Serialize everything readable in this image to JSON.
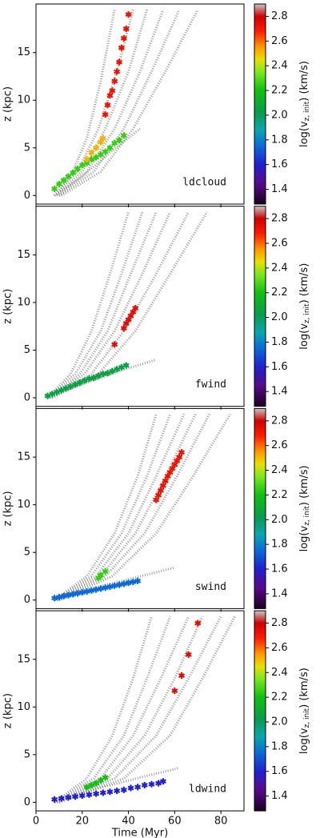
{
  "chart_data": [
    {
      "type": "scatter",
      "label": "ldcloud",
      "ylabel": "z (kpc)",
      "xlim": [
        0,
        90
      ],
      "ylim": [
        -0.9,
        20.1
      ],
      "xticks": [
        0,
        20,
        40,
        60,
        80
      ],
      "yticks": [
        0,
        5,
        10,
        15
      ],
      "clim": [
        1.28,
        2.9
      ],
      "cticks": [
        1.4,
        1.6,
        1.8,
        {
          "value": 2,
          "label": "2.0"
        },
        2.2,
        2.4,
        2.6,
        2.8
      ],
      "cbar_label": {
        "main": "log(v",
        "sub": "z, init",
        "tail": ") (km/s)"
      },
      "colormap": [
        {
          "value": 1.28,
          "color": "#1a0020"
        },
        {
          "value": 1.45,
          "color": "#5a0a8a"
        },
        {
          "value": 1.6,
          "color": "#2020d0"
        },
        {
          "value": 1.75,
          "color": "#0a6ad8"
        },
        {
          "value": 1.88,
          "color": "#0aa6b0"
        },
        {
          "value": 2.02,
          "color": "#0a9a50"
        },
        {
          "value": 2.2,
          "color": "#10c010"
        },
        {
          "value": 2.35,
          "color": "#7ce820"
        },
        {
          "value": 2.45,
          "color": "#e8e000"
        },
        {
          "value": 2.55,
          "color": "#ff9a00"
        },
        {
          "value": 2.68,
          "color": "#ff1a00"
        },
        {
          "value": 2.8,
          "color": "#d00000"
        },
        {
          "value": 2.9,
          "color": "#c8c8c8"
        }
      ],
      "tracks": [
        {
          "x": [
            8,
            15,
            22,
            28,
            34
          ],
          "y": [
            0,
            2,
            6,
            12,
            19.5
          ]
        },
        {
          "x": [
            8,
            18,
            27,
            35,
            42
          ],
          "y": [
            0,
            2.5,
            7,
            13,
            19.5
          ]
        },
        {
          "x": [
            9,
            20,
            30,
            40,
            48
          ],
          "y": [
            0,
            2.5,
            7,
            13,
            19.5
          ]
        },
        {
          "x": [
            10,
            22,
            34,
            45,
            55
          ],
          "y": [
            0,
            2.5,
            7,
            13,
            19.5
          ]
        },
        {
          "x": [
            10,
            25,
            38,
            50,
            62
          ],
          "y": [
            0,
            2.5,
            7,
            13,
            19.5
          ]
        },
        {
          "x": [
            11,
            28,
            42,
            56,
            70
          ],
          "y": [
            0,
            2.5,
            7,
            13,
            19.5
          ]
        },
        {
          "x": [
            8,
            20,
            32,
            45
          ],
          "y": [
            0,
            2,
            4.5,
            7
          ]
        }
      ],
      "stars": [
        {
          "c": 2.25,
          "x": [
            8,
            10,
            12,
            14,
            16,
            18,
            20,
            22,
            24,
            26,
            28,
            30,
            32,
            34,
            36,
            38
          ],
          "y": [
            0.7,
            1.2,
            1.6,
            2,
            2.4,
            2.8,
            3.2,
            3.4,
            3.8,
            4,
            4.3,
            4.6,
            5,
            5.5,
            5.8,
            6.3
          ]
        },
        {
          "c": 2.52,
          "x": [
            22,
            24,
            26,
            28,
            29
          ],
          "y": [
            3.8,
            4.5,
            5,
            5.6,
            6
          ]
        },
        {
          "c": 2.72,
          "x": [
            30,
            31,
            32,
            33,
            34,
            35,
            36,
            37,
            38,
            39,
            40
          ],
          "y": [
            8.5,
            9.5,
            10.5,
            11,
            12,
            13,
            14,
            15.5,
            16.5,
            17.5,
            19
          ]
        }
      ]
    },
    {
      "type": "scatter",
      "label": "fwind",
      "ylabel": "z (kpc)",
      "xlim": [
        0,
        90
      ],
      "ylim": [
        -0.9,
        20.1
      ],
      "xticks": [
        0,
        20,
        40,
        60,
        80
      ],
      "yticks": [
        0,
        5,
        10,
        15
      ],
      "clim": [
        1.28,
        2.9
      ],
      "cticks": [
        1.4,
        1.6,
        1.8,
        {
          "value": 2,
          "label": "2.0"
        },
        2.2,
        2.4,
        2.6,
        2.8
      ],
      "cbar_label": {
        "main": "log(v",
        "sub": "z, init",
        "tail": ") (km/s)"
      },
      "colormap": [
        {
          "value": 1.28,
          "color": "#1a0020"
        },
        {
          "value": 1.45,
          "color": "#5a0a8a"
        },
        {
          "value": 1.6,
          "color": "#2020d0"
        },
        {
          "value": 1.75,
          "color": "#0a6ad8"
        },
        {
          "value": 1.88,
          "color": "#0aa6b0"
        },
        {
          "value": 2.02,
          "color": "#0a9a50"
        },
        {
          "value": 2.2,
          "color": "#10c010"
        },
        {
          "value": 2.35,
          "color": "#7ce820"
        },
        {
          "value": 2.45,
          "color": "#e8e000"
        },
        {
          "value": 2.55,
          "color": "#ff9a00"
        },
        {
          "value": 2.68,
          "color": "#ff1a00"
        },
        {
          "value": 2.8,
          "color": "#d00000"
        },
        {
          "value": 2.9,
          "color": "#c8c8c8"
        }
      ],
      "tracks": [
        {
          "x": [
            5,
            15,
            24,
            32,
            40
          ],
          "y": [
            0,
            2.5,
            7,
            13,
            19.5
          ]
        },
        {
          "x": [
            5,
            17,
            28,
            37,
            46
          ],
          "y": [
            0,
            2.5,
            7,
            13,
            19.5
          ]
        },
        {
          "x": [
            6,
            19,
            31,
            41,
            52
          ],
          "y": [
            0,
            2.5,
            7,
            13,
            19.5
          ]
        },
        {
          "x": [
            6,
            21,
            34,
            46,
            58
          ],
          "y": [
            0,
            2.5,
            7,
            13,
            19.5
          ]
        },
        {
          "x": [
            7,
            24,
            38,
            52,
            66
          ],
          "y": [
            0,
            2.5,
            7,
            13,
            19.5
          ]
        },
        {
          "x": [
            7,
            27,
            43,
            58,
            74
          ],
          "y": [
            0,
            2.5,
            7,
            13,
            19.5
          ]
        },
        {
          "x": [
            5,
            20,
            36,
            52
          ],
          "y": [
            0,
            1.4,
            2.8,
            4
          ]
        }
      ],
      "stars": [
        {
          "c": 2.05,
          "x": [
            5,
            7,
            9,
            11,
            13,
            15,
            17,
            19,
            21,
            23,
            25,
            27,
            29,
            31,
            33,
            35,
            37,
            39
          ],
          "y": [
            0.2,
            0.4,
            0.6,
            0.8,
            1,
            1.2,
            1.4,
            1.6,
            1.8,
            2,
            2.1,
            2.3,
            2.5,
            2.6,
            2.8,
            3,
            3.2,
            3.4
          ]
        },
        {
          "c": 2.75,
          "x": [
            34,
            38,
            39,
            40,
            41,
            42,
            43
          ],
          "y": [
            5.6,
            7.3,
            7.8,
            8.2,
            8.6,
            9,
            9.4
          ]
        }
      ]
    },
    {
      "type": "scatter",
      "label": "swind",
      "ylabel": "z (kpc)",
      "xlim": [
        0,
        90
      ],
      "ylim": [
        -0.9,
        20.1
      ],
      "xticks": [
        0,
        20,
        40,
        60,
        80
      ],
      "yticks": [
        0,
        5,
        10,
        15
      ],
      "clim": [
        1.28,
        2.9
      ],
      "cticks": [
        1.4,
        1.6,
        1.8,
        {
          "value": 2,
          "label": "2.0"
        },
        2.2,
        2.4,
        2.6,
        2.8
      ],
      "cbar_label": {
        "main": "log(v",
        "sub": "z, init",
        "tail": ") (km/s)"
      },
      "colormap": [
        {
          "value": 1.28,
          "color": "#1a0020"
        },
        {
          "value": 1.45,
          "color": "#5a0a8a"
        },
        {
          "value": 1.6,
          "color": "#2020d0"
        },
        {
          "value": 1.75,
          "color": "#0a6ad8"
        },
        {
          "value": 1.88,
          "color": "#0aa6b0"
        },
        {
          "value": 2.02,
          "color": "#0a9a50"
        },
        {
          "value": 2.2,
          "color": "#10c010"
        },
        {
          "value": 2.35,
          "color": "#7ce820"
        },
        {
          "value": 2.45,
          "color": "#e8e000"
        },
        {
          "value": 2.55,
          "color": "#ff9a00"
        },
        {
          "value": 2.68,
          "color": "#ff1a00"
        },
        {
          "value": 2.8,
          "color": "#d00000"
        },
        {
          "value": 2.9,
          "color": "#c8c8c8"
        }
      ],
      "tracks": [
        {
          "x": [
            8,
            22,
            34,
            44,
            52
          ],
          "y": [
            0,
            2.5,
            7,
            13,
            19.5
          ]
        },
        {
          "x": [
            8,
            24,
            37,
            48,
            58
          ],
          "y": [
            0,
            2.5,
            7,
            13,
            19.5
          ]
        },
        {
          "x": [
            9,
            26,
            40,
            52,
            64
          ],
          "y": [
            0,
            2.5,
            7,
            13,
            19.5
          ]
        },
        {
          "x": [
            9,
            28,
            43,
            56,
            69
          ],
          "y": [
            0,
            2.5,
            7,
            13,
            19.5
          ]
        },
        {
          "x": [
            10,
            30,
            47,
            61,
            75
          ],
          "y": [
            0,
            2.5,
            7,
            13,
            19.5
          ]
        },
        {
          "x": [
            10,
            33,
            52,
            68,
            84
          ],
          "y": [
            0,
            2.5,
            7,
            13,
            19.5
          ]
        },
        {
          "x": [
            8,
            24,
            42,
            60
          ],
          "y": [
            0,
            1.2,
            2.3,
            3.4
          ]
        }
      ],
      "stars": [
        {
          "c": 1.75,
          "x": [
            8,
            10,
            12,
            14,
            16,
            18,
            20,
            22,
            24,
            26,
            28,
            30,
            32,
            34,
            36,
            38,
            40,
            42,
            44
          ],
          "y": [
            0.2,
            0.3,
            0.4,
            0.5,
            0.6,
            0.7,
            0.8,
            0.9,
            1,
            1.1,
            1.2,
            1.3,
            1.4,
            1.5,
            1.6,
            1.7,
            1.8,
            1.9,
            2
          ]
        },
        {
          "c": 2.25,
          "x": [
            27,
            28,
            30
          ],
          "y": [
            2.3,
            2.6,
            3
          ]
        },
        {
          "c": 2.72,
          "x": [
            52,
            53,
            54,
            55,
            56,
            57,
            58,
            59,
            60,
            61,
            62,
            63
          ],
          "y": [
            10.5,
            11,
            11.5,
            12,
            12.5,
            13,
            13.4,
            13.8,
            14.2,
            14.6,
            15,
            15.5
          ]
        }
      ]
    },
    {
      "type": "scatter",
      "label": "ldwind",
      "ylabel": "z (kpc)",
      "xlabel": "Time (Myr)",
      "xlim": [
        0,
        90
      ],
      "ylim": [
        -0.9,
        20.1
      ],
      "xticks": [
        0,
        20,
        40,
        60,
        80
      ],
      "yticks": [
        0,
        5,
        10,
        15
      ],
      "clim": [
        1.28,
        2.9
      ],
      "cticks": [
        1.4,
        1.6,
        1.8,
        {
          "value": 2,
          "label": "2.0"
        },
        2.2,
        2.4,
        2.6,
        2.8
      ],
      "cbar_label": {
        "main": "log(v",
        "sub": "z, init",
        "tail": ") (km/s)"
      },
      "colormap": [
        {
          "value": 1.28,
          "color": "#1a0020"
        },
        {
          "value": 1.45,
          "color": "#5a0a8a"
        },
        {
          "value": 1.6,
          "color": "#2020d0"
        },
        {
          "value": 1.75,
          "color": "#0a6ad8"
        },
        {
          "value": 1.88,
          "color": "#0aa6b0"
        },
        {
          "value": 2.02,
          "color": "#0a9a50"
        },
        {
          "value": 2.2,
          "color": "#10c010"
        },
        {
          "value": 2.35,
          "color": "#7ce820"
        },
        {
          "value": 2.45,
          "color": "#e8e000"
        },
        {
          "value": 2.55,
          "color": "#ff9a00"
        },
        {
          "value": 2.68,
          "color": "#ff1a00"
        },
        {
          "value": 2.8,
          "color": "#d00000"
        },
        {
          "value": 2.9,
          "color": "#c8c8c8"
        }
      ],
      "tracks": [
        {
          "x": [
            8,
            22,
            33,
            42,
            50
          ],
          "y": [
            0,
            2.5,
            7,
            13,
            19.5
          ]
        },
        {
          "x": [
            8,
            25,
            38,
            48,
            58
          ],
          "y": [
            0,
            2.5,
            7,
            13,
            19.5
          ]
        },
        {
          "x": [
            9,
            28,
            42,
            54,
            66
          ],
          "y": [
            0,
            2.5,
            7,
            13,
            19.5
          ]
        },
        {
          "x": [
            9,
            31,
            47,
            60,
            72
          ],
          "y": [
            0,
            2.5,
            7,
            13,
            19.5
          ]
        },
        {
          "x": [
            10,
            34,
            52,
            66,
            80
          ],
          "y": [
            0,
            2.5,
            7,
            13,
            19.5
          ]
        },
        {
          "x": [
            10,
            38,
            58,
            72,
            86
          ],
          "y": [
            0,
            2.5,
            7,
            13,
            19.5
          ]
        },
        {
          "x": [
            8,
            26,
            45,
            62
          ],
          "y": [
            0,
            1.4,
            2.6,
            3.6
          ]
        }
      ],
      "stars": [
        {
          "c": 1.6,
          "x": [
            8,
            11,
            14,
            17,
            20,
            23,
            26,
            29,
            32,
            35,
            38,
            41,
            44,
            47,
            50,
            53,
            55
          ],
          "y": [
            0.3,
            0.4,
            0.5,
            0.6,
            0.7,
            0.8,
            0.9,
            1,
            1.1,
            1.2,
            1.3,
            1.5,
            1.6,
            1.8,
            1.9,
            2,
            2.2
          ]
        },
        {
          "c": 2.2,
          "x": [
            22,
            24,
            26,
            28,
            30
          ],
          "y": [
            1.6,
            1.8,
            2,
            2.3,
            2.6
          ]
        },
        {
          "c": 2.75,
          "x": [
            60,
            63,
            66,
            70
          ],
          "y": [
            11.7,
            13.3,
            15.5,
            18.8
          ]
        }
      ]
    }
  ]
}
